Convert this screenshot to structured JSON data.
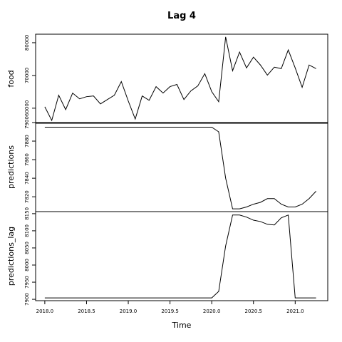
{
  "chart_data": [
    {
      "type": "line",
      "title": "Lag  4",
      "ylabel": "food",
      "color": "#000000",
      "x": [
        2018,
        2018.0833,
        2018.1667,
        2018.25,
        2018.3333,
        2018.4167,
        2018.5,
        2018.5833,
        2018.6667,
        2018.75,
        2018.8333,
        2018.9167,
        2019,
        2019.0833,
        2019.1667,
        2019.25,
        2019.3333,
        2019.4167,
        2019.5,
        2019.5833,
        2019.6667,
        2019.75,
        2019.8333,
        2019.9167,
        2020,
        2020.0833,
        2020.1667,
        2020.25,
        2020.3333,
        2020.4167,
        2020.5,
        2020.5833,
        2020.6667,
        2020.75,
        2020.8333,
        2020.9167,
        2021,
        2021.0833,
        2021.1667,
        2021.25
      ],
      "values": [
        60440,
        56260,
        63960,
        59560,
        64620,
        62860,
        63520,
        63740,
        61320,
        62640,
        63960,
        68130,
        62200,
        56700,
        63740,
        62420,
        66590,
        64620,
        66590,
        67250,
        62640,
        65280,
        66810,
        70550,
        65060,
        61980,
        81760,
        71430,
        77140,
        72310,
        75600,
        73190,
        70110,
        72530,
        72090,
        77800,
        72310,
        66370,
        73190,
        72090
      ],
      "xlim": [
        2017.89,
        2021.39
      ],
      "ylim": [
        55400,
        82600
      ],
      "yticks": [
        60000,
        70000,
        80000
      ]
    },
    {
      "type": "line",
      "ylabel": "predictions",
      "color": "#000000",
      "x": [
        2018,
        2018.0833,
        2018.1667,
        2018.25,
        2018.3333,
        2018.4167,
        2018.5,
        2018.5833,
        2018.6667,
        2018.75,
        2018.8333,
        2018.9167,
        2019,
        2019.0833,
        2019.1667,
        2019.25,
        2019.3333,
        2019.4167,
        2019.5,
        2019.5833,
        2019.6667,
        2019.75,
        2019.8333,
        2019.9167,
        2020,
        2020.0833,
        2020.1667,
        2020.25,
        2020.3333,
        2020.4167,
        2020.5,
        2020.5833,
        2020.6667,
        2020.75,
        2020.8333,
        2020.9167,
        2021,
        2021.0833,
        2021.1667,
        2021.25
      ],
      "values": [
        7895,
        7895,
        7895,
        7895,
        7895,
        7895,
        7895,
        7895,
        7895,
        7895,
        7895,
        7895,
        7895,
        7895,
        7895,
        7895,
        7895,
        7895,
        7895,
        7895,
        7895,
        7895,
        7895,
        7895,
        7895,
        7890,
        7840,
        7807,
        7807,
        7809,
        7812,
        7814,
        7818,
        7818,
        7812,
        7809,
        7809,
        7812,
        7818,
        7826
      ],
      "xlim": [
        2017.89,
        2021.39
      ],
      "ylim": [
        7804,
        7900
      ],
      "yticks": [
        7820,
        7840,
        7860,
        7880,
        7900
      ]
    },
    {
      "type": "line",
      "ylabel": "predictions_lag",
      "xlabel": "Time",
      "color": "#000000",
      "x": [
        2018,
        2018.0833,
        2018.1667,
        2018.25,
        2018.3333,
        2018.4167,
        2018.5,
        2018.5833,
        2018.6667,
        2018.75,
        2018.8333,
        2018.9167,
        2019,
        2019.0833,
        2019.1667,
        2019.25,
        2019.3333,
        2019.4167,
        2019.5,
        2019.5833,
        2019.6667,
        2019.75,
        2019.8333,
        2019.9167,
        2020,
        2020.0833,
        2020.1667,
        2020.25,
        2020.3333,
        2020.4167,
        2020.5,
        2020.5833,
        2020.6667,
        2020.75,
        2020.8333,
        2020.9167,
        2021,
        2021.0833,
        2021.1667,
        2021.25
      ],
      "values": [
        7904,
        7904,
        7904,
        7904,
        7904,
        7904,
        7904,
        7904,
        7904,
        7904,
        7904,
        7904,
        7904,
        7904,
        7904,
        7904,
        7904,
        7904,
        7904,
        7904,
        7904,
        7904,
        7904,
        7904,
        7904,
        7923,
        8056,
        8146,
        8146,
        8140,
        8131,
        8127,
        8119,
        8117,
        8138,
        8146,
        7904,
        7904,
        7904,
        7904
      ],
      "xlim": [
        2017.89,
        2021.39
      ],
      "ylim": [
        7896,
        8156
      ],
      "yticks": [
        7900,
        7950,
        8000,
        8050,
        8100,
        8150
      ],
      "xticks": [
        {
          "value": 2018,
          "label": "2018.0"
        },
        {
          "value": 2018.5,
          "label": "2018.5"
        },
        {
          "value": 2019,
          "label": "2019.0"
        },
        {
          "value": 2019.5,
          "label": "2019.5"
        },
        {
          "value": 2020,
          "label": "2020.0"
        },
        {
          "value": 2020.5,
          "label": "2020.5"
        },
        {
          "value": 2021,
          "label": "2021.0"
        }
      ]
    }
  ]
}
